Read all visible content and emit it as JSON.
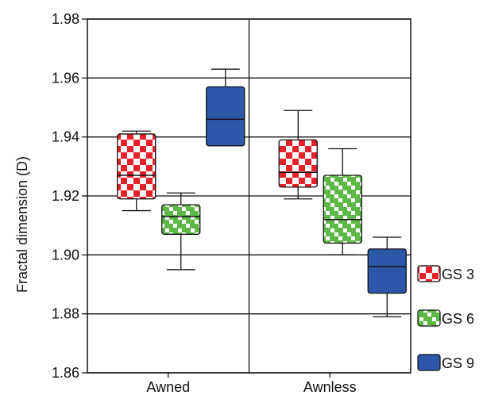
{
  "chart_data": {
    "type": "box",
    "ylabel": "Fractal dimension (D)",
    "xlabel": "",
    "ylim": [
      1.86,
      1.98
    ],
    "yticks": [
      1.86,
      1.88,
      1.9,
      1.92,
      1.94,
      1.96,
      1.98
    ],
    "ytick_labels": [
      "1.86",
      "1.88",
      "1.90",
      "1.92",
      "1.94",
      "1.96",
      "1.98"
    ],
    "grid": true,
    "legend_position": "right",
    "categories": [
      "Awned",
      "Awnless"
    ],
    "series": [
      {
        "name": "GS 3",
        "color": "#e8202a",
        "pattern": "white-checker",
        "boxes": [
          {
            "category": "Awned",
            "min": 1.915,
            "q1": 1.919,
            "median": 1.927,
            "q3": 1.941,
            "max": 1.942
          },
          {
            "category": "Awnless",
            "min": 1.919,
            "q1": 1.923,
            "median": 1.928,
            "q3": 1.939,
            "max": 1.949
          }
        ]
      },
      {
        "name": "GS 6",
        "color": "#5db847",
        "pattern": "white-diagonal",
        "boxes": [
          {
            "category": "Awned",
            "min": 1.895,
            "q1": 1.907,
            "median": 1.913,
            "q3": 1.917,
            "max": 1.921
          },
          {
            "category": "Awnless",
            "min": 1.9,
            "q1": 1.904,
            "median": 1.912,
            "q3": 1.927,
            "max": 1.936
          }
        ]
      },
      {
        "name": "GS 9",
        "color": "#2d57a8",
        "pattern": "solid",
        "boxes": [
          {
            "category": "Awned",
            "min": 1.937,
            "q1": 1.937,
            "median": 1.946,
            "q3": 1.957,
            "max": 1.963
          },
          {
            "category": "Awnless",
            "min": 1.879,
            "q1": 1.887,
            "median": 1.896,
            "q3": 1.902,
            "max": 1.906
          }
        ]
      }
    ]
  }
}
